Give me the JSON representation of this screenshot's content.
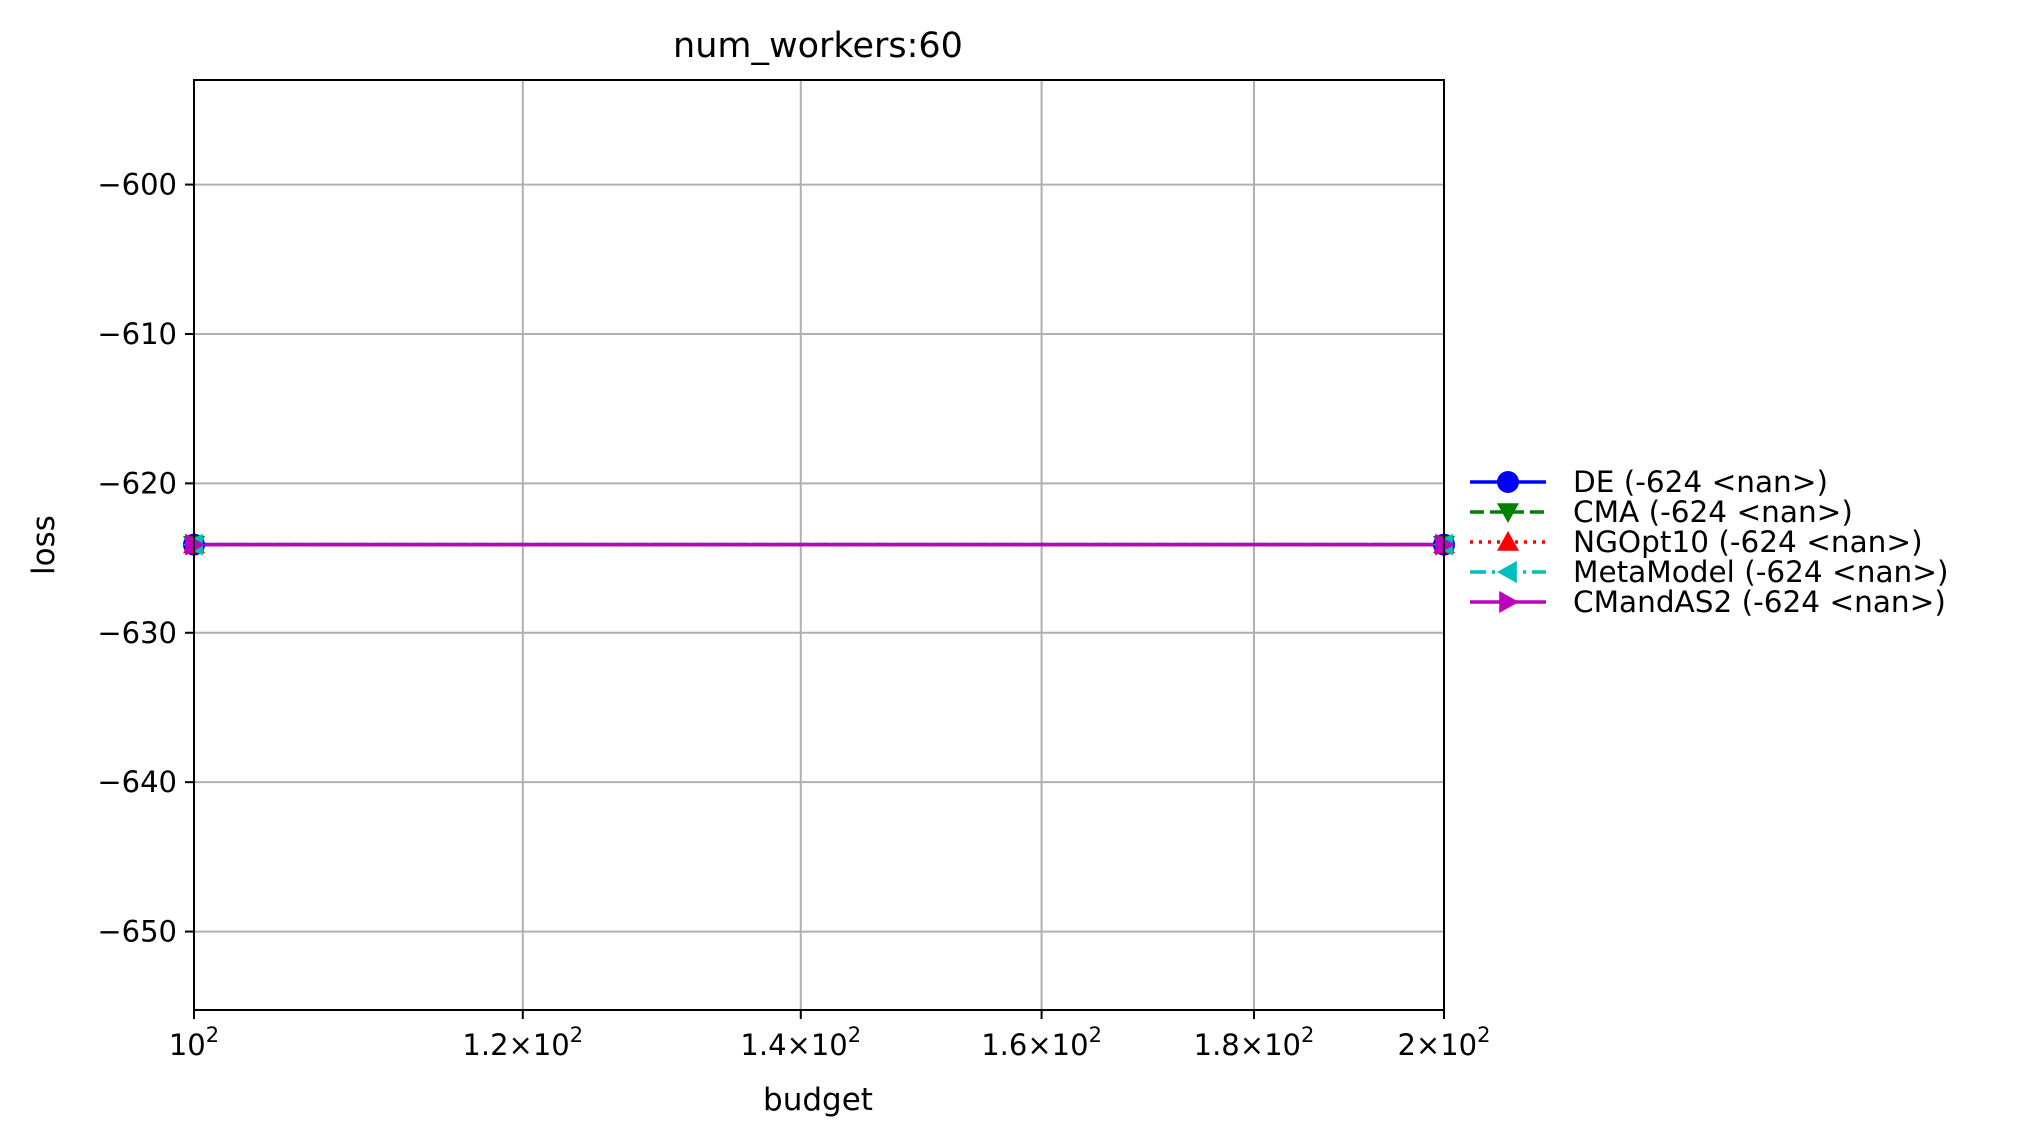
{
  "chart_data": {
    "type": "line",
    "title": "num_workers:60",
    "xlabel": "budget",
    "ylabel": "loss",
    "x_scale": "log",
    "xlim": [
      100,
      200
    ],
    "ylim": [
      -655.25,
      -593
    ],
    "grid": true,
    "legend_position": "right, outside plot",
    "x_ticks": [
      {
        "value": 100,
        "mant": "",
        "base": "10",
        "exp": "2"
      },
      {
        "value": 120,
        "mant": "1.2",
        "base": "10",
        "exp": "2"
      },
      {
        "value": 140,
        "mant": "1.4",
        "base": "10",
        "exp": "2"
      },
      {
        "value": 160,
        "mant": "1.6",
        "base": "10",
        "exp": "2"
      },
      {
        "value": 180,
        "mant": "1.8",
        "base": "10",
        "exp": "2"
      },
      {
        "value": 200,
        "mant": "2",
        "base": "10",
        "exp": "2"
      }
    ],
    "y_ticks": [
      {
        "value": -600,
        "label": "−600"
      },
      {
        "value": -610,
        "label": "−610"
      },
      {
        "value": -620,
        "label": "−620"
      },
      {
        "value": -630,
        "label": "−630"
      },
      {
        "value": -640,
        "label": "−640"
      },
      {
        "value": -650,
        "label": "−650"
      }
    ],
    "x": [
      100,
      200
    ],
    "series": [
      {
        "name": "DE (-624 <nan>)",
        "color": "#0000ff",
        "linestyle": "solid",
        "marker": "circle",
        "values": [
          -624.1,
          -624.1
        ]
      },
      {
        "name": "CMA (-624 <nan>)",
        "color": "#008000",
        "linestyle": "dashed",
        "marker": "triangle-down",
        "values": [
          -624.1,
          -624.1
        ]
      },
      {
        "name": "NGOpt10 (-624 <nan>)",
        "color": "#ff0000",
        "linestyle": "dotted",
        "marker": "triangle-up",
        "values": [
          -624.1,
          -624.1
        ]
      },
      {
        "name": "MetaModel (-624 <nan>)",
        "color": "#00bfbf",
        "linestyle": "dashdot",
        "marker": "triangle-left",
        "values": [
          -624.1,
          -624.1
        ]
      },
      {
        "name": "CMandAS2 (-624 <nan>)",
        "color": "#bf00bf",
        "linestyle": "solid",
        "marker": "triangle-right",
        "values": [
          -624.1,
          -624.1
        ]
      }
    ]
  }
}
